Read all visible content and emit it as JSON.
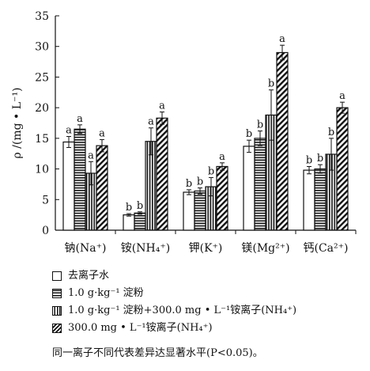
{
  "chart_data": {
    "type": "bar",
    "ylabel": "ρ /(mg • L⁻¹)",
    "ylim": [
      0,
      35
    ],
    "yticks": [
      0,
      5,
      10,
      15,
      20,
      25,
      30,
      35
    ],
    "categories": [
      "钠(Na⁺)",
      "铵(NH₄⁺)",
      "钾(K⁺)",
      "镁(Mg²⁺)",
      "钙(Ca²⁺)"
    ],
    "series": [
      {
        "name": "去离子水",
        "pattern": "none",
        "values": [
          14.4,
          2.5,
          6.2,
          13.7,
          9.8
        ],
        "errors": [
          0.9,
          0.2,
          0.4,
          1.0,
          0.6
        ],
        "labels": [
          "a",
          "b",
          "b",
          "b",
          "b"
        ]
      },
      {
        "name": "1.0 g·kg⁻¹ 淀粉",
        "pattern": "horizontal",
        "values": [
          16.5,
          2.8,
          6.4,
          15.0,
          10.0
        ],
        "errors": [
          0.7,
          0.2,
          0.5,
          1.2,
          0.7
        ],
        "labels": [
          "a",
          "b",
          "b",
          "b",
          "b"
        ]
      },
      {
        "name": "1.0 g·kg⁻¹ 淀粉+300.0 mg • L⁻¹铵离子(NH₄⁺)",
        "pattern": "vertical",
        "values": [
          9.3,
          14.5,
          7.1,
          18.8,
          12.4
        ],
        "errors": [
          1.9,
          2.2,
          1.5,
          4.1,
          2.6
        ],
        "labels": [
          "a",
          "a",
          "b",
          "b",
          "b"
        ]
      },
      {
        "name": "300.0 mg • L⁻¹铵离子(NH₄⁺)",
        "pattern": "diagonal",
        "values": [
          13.8,
          18.3,
          10.4,
          29.0,
          20.0
        ],
        "errors": [
          1.0,
          1.0,
          0.6,
          1.2,
          0.9
        ],
        "labels": [
          "a",
          "a",
          "a",
          "a",
          "a"
        ]
      }
    ],
    "note": "同一离子不同代表差异达显著水平(P<0.05)。"
  }
}
